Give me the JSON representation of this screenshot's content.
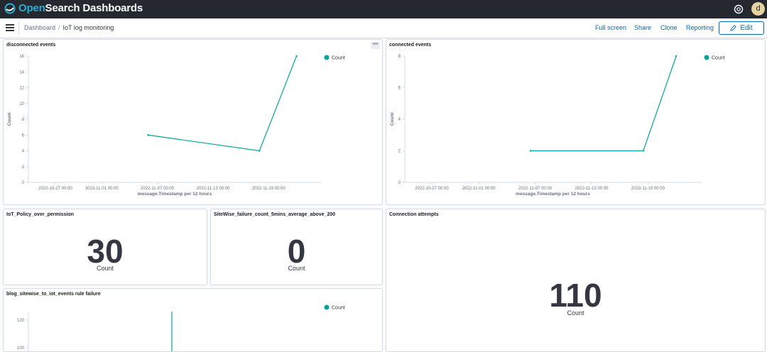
{
  "header": {
    "logo_text_part1": "Open",
    "logo_text_part2": "Search Dashboards",
    "avatar_initial": "d"
  },
  "nav": {
    "breadcrumbs": [
      "Dashboard",
      "IoT log monitoring"
    ],
    "actions": [
      "Full screen",
      "Share",
      "Clone",
      "Reporting"
    ],
    "edit_label": "Edit"
  },
  "colors": {
    "series": "#00a69b",
    "accent": "#006bb8",
    "topbar": "#25282f"
  },
  "panels": {
    "disconnected": {
      "title": "disconnected events",
      "menu": "•••"
    },
    "connected": {
      "title": "connected events"
    },
    "policy": {
      "title": "IoT_Policy_over_permission",
      "value": "30",
      "label": "Count"
    },
    "sitewise": {
      "title": "SiteWise_failure_count_5mins_average_above_200",
      "value": "0",
      "label": "Count"
    },
    "attempts": {
      "title": "Connection attempts",
      "value": "110",
      "label": "Count"
    },
    "rulefail": {
      "title": "blog_sitewise_to_iot_events rule failure"
    }
  },
  "chart_data": [
    {
      "type": "line",
      "title": "disconnected events",
      "xlabel": "message.Timestamp per 12 hours",
      "ylabel": "Count",
      "x_ticks": [
        "2022-10-27 00:00",
        "2022-11-01 00:00",
        "2022-11-07 00:00",
        "2022-11-13 00:00",
        "2022-11-19 00:00"
      ],
      "y_ticks": [
        0,
        2,
        4,
        6,
        8,
        10,
        12,
        14,
        16
      ],
      "ylim": [
        0,
        16
      ],
      "series": [
        {
          "name": "Count",
          "points": [
            [
              "2022-11-06 00:00",
              6
            ],
            [
              "2022-11-18 00:00",
              4
            ],
            [
              "2022-11-22 00:00",
              16
            ]
          ]
        }
      ],
      "legend": "top-right"
    },
    {
      "type": "line",
      "title": "connected events",
      "xlabel": "message.Timestamp per 12 hours",
      "ylabel": "Count",
      "x_ticks": [
        "2022-10-27 00:00",
        "2022-11-01 00:00",
        "2022-11-07 00:00",
        "2022-11-13 00:00",
        "2022-11-19 00:00"
      ],
      "y_ticks": [
        0,
        2,
        4,
        6,
        8
      ],
      "ylim": [
        0,
        8
      ],
      "series": [
        {
          "name": "Count",
          "points": [
            [
              "2022-11-06 12:00",
              2
            ],
            [
              "2022-11-18 12:00",
              2
            ],
            [
              "2022-11-22 00:00",
              8
            ]
          ]
        }
      ],
      "legend": "top-right"
    },
    {
      "type": "line",
      "title": "blog_sitewise_to_iot_events rule failure",
      "xlabel": "",
      "ylabel": "",
      "x_ticks": [],
      "y_ticks": [
        100,
        120
      ],
      "series": [
        {
          "name": "Count",
          "values": []
        }
      ],
      "legend": "top-right"
    }
  ]
}
